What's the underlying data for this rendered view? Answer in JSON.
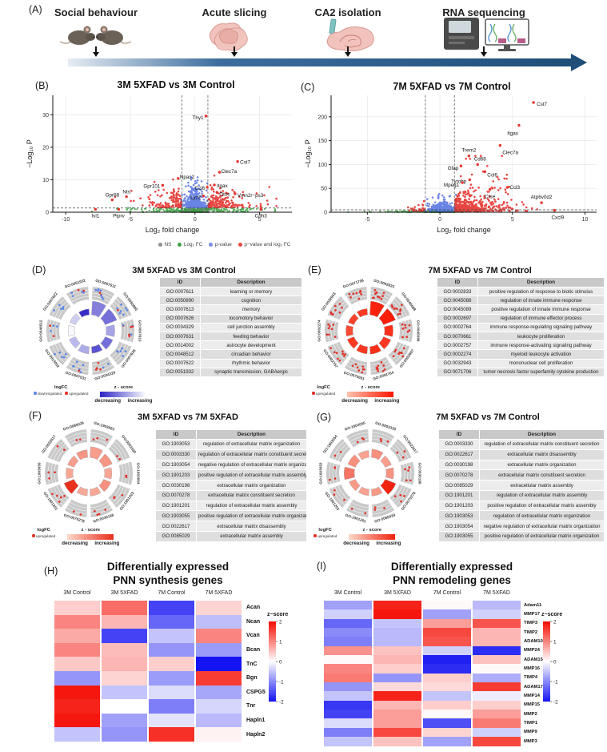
{
  "panelA": {
    "label": "(A)",
    "steps": [
      {
        "title": "Social behaviour",
        "icon": "mice-icon"
      },
      {
        "title": "Acute slicing",
        "icon": "brain-slices-icon"
      },
      {
        "title": "CA2 isolation",
        "icon": "ca2-isolation-icon"
      },
      {
        "title": "RNA sequencing",
        "icon": "rna-sequencer-icon"
      }
    ]
  },
  "volcano_legend": {
    "items": [
      {
        "label": "NS",
        "color": "#8f8f8f"
      },
      {
        "label": "Log₂ FC",
        "color": "#3fa045"
      },
      {
        "label": "p-value",
        "color": "#7b8ee8"
      },
      {
        "label": "p−value and log₂ FC",
        "color": "#e8453c"
      }
    ]
  },
  "chart_data": [
    {
      "panel": "B",
      "panel_label": "(B)",
      "type": "scatter",
      "subtype": "volcano",
      "title": "3M 5XFAD vs 3M Control",
      "xlabel": "Log₂ fold change",
      "ylabel": "−Log₁₀ P",
      "xlim": [
        -11,
        7.5
      ],
      "ylim": [
        0,
        36
      ],
      "xticks": [
        -10,
        -5,
        0,
        5
      ],
      "yticks": [
        0,
        10,
        20,
        30
      ],
      "fc_threshold": 1,
      "p_threshold": 1.3,
      "point_colors": {
        "ns": "#6f6f6f",
        "fc": "#2f9e38",
        "p": "#4f6fe0",
        "both": "#e5332e"
      },
      "labeled_genes": [
        {
          "gene": "Thy1",
          "x": 0.85,
          "y": 29.6
        },
        {
          "gene": "Cst7",
          "x": 3.3,
          "y": 15.6
        },
        {
          "gene": "Clec7a",
          "x": 1.9,
          "y": 12.3
        },
        {
          "gene": "Npas2",
          "x": -1.3,
          "y": 10.4
        },
        {
          "gene": "Gpr101",
          "x": -2.5,
          "y": 8.3
        },
        {
          "gene": "Itgax",
          "x": 1.5,
          "y": 8.4
        },
        {
          "gene": "Ccl6",
          "x": 0.95,
          "y": 7.7
        },
        {
          "gene": "Otos",
          "x": 1.7,
          "y": 6.1
        },
        {
          "gene": "Vmn2r−ps3",
          "x": 3.1,
          "y": 5.7
        },
        {
          "gene": "Lyz2",
          "x": 0.65,
          "y": 5.0
        },
        {
          "gene": "Nts",
          "x": -5.3,
          "y": 4.8
        },
        {
          "gene": "Gpr88",
          "x": -6.4,
          "y": 3.8
        },
        {
          "gene": "Isl1",
          "x": -7.7,
          "y": 0.9
        },
        {
          "gene": "Ptprv",
          "x": -5.9,
          "y": 0.9
        },
        {
          "gene": "Cdh3",
          "x": 5.1,
          "y": 0.9
        }
      ]
    },
    {
      "panel": "C",
      "panel_label": "(C)",
      "type": "scatter",
      "subtype": "volcano",
      "title": "7M 5XFAD vs 7M Control",
      "xlabel": "Log₂ fold change",
      "ylabel": "−Log₁₀ P",
      "xlim": [
        -7.5,
        10.8
      ],
      "ylim": [
        0,
        245
      ],
      "xticks": [
        -5,
        0,
        5,
        10
      ],
      "yticks": [
        0,
        50,
        100,
        150,
        200
      ],
      "fc_threshold": 1,
      "p_threshold": 5,
      "point_colors": {
        "ns": "#6f6f6f",
        "fc": "#2f9e38",
        "p": "#4f6fe0",
        "both": "#e5332e"
      },
      "labeled_genes": [
        {
          "gene": "Cst7",
          "x": 6.45,
          "y": 230
        },
        {
          "gene": "Itgax",
          "x": 5.45,
          "y": 182
        },
        {
          "gene": "Clec7a",
          "x": 4.15,
          "y": 140
        },
        {
          "gene": "Trem2",
          "x": 2.0,
          "y": 118
        },
        {
          "gene": "Cd68",
          "x": 2.6,
          "y": 100
        },
        {
          "gene": "Gfap",
          "x": 1.45,
          "y": 97
        },
        {
          "gene": "Ccl6",
          "x": 3.1,
          "y": 85
        },
        {
          "gene": "Tyrobp",
          "x": 2.05,
          "y": 68
        },
        {
          "gene": "Mpeg1",
          "x": 1.55,
          "y": 62
        },
        {
          "gene": "Ccl3",
          "x": 4.65,
          "y": 52
        },
        {
          "gene": "Ctse",
          "x": 3.45,
          "y": 48
        },
        {
          "gene": "Atp6v0d2",
          "x": 7.0,
          "y": 20
        },
        {
          "gene": "Cxcl9",
          "x": 7.9,
          "y": 4
        }
      ]
    },
    {
      "panel": "D",
      "panel_label": "(D)",
      "type": "circular-go",
      "title": "3M 5XFAD vs 3M Control",
      "legend": {
        "logfc_title": "logFC",
        "logfc_items": [
          {
            "label": "downregulated",
            "color": "#5b86e8"
          },
          {
            "label": "upregulated",
            "color": "#e03128"
          }
        ],
        "zscore_title": "z - score",
        "gradient": [
          "#2b23c4",
          "#ffffff"
        ],
        "left_label": "decreasing",
        "right_label": "increasing"
      },
      "dot_red_fraction": 0.3,
      "sectors": [
        {
          "id": "GO:0007611",
          "h": 1.0,
          "z": 0.42,
          "dots": 9
        },
        {
          "id": "GO:0050890",
          "h": 0.92,
          "z": 0.35,
          "dots": 8
        },
        {
          "id": "GO:0007613",
          "h": 0.62,
          "z": 0.58,
          "dots": 8
        },
        {
          "id": "GO:0007626",
          "h": 0.6,
          "z": 0.35,
          "dots": 7
        },
        {
          "id": "GO:0034329",
          "h": 0.48,
          "z": 0.22,
          "dots": 6
        },
        {
          "id": "GO:0007631",
          "h": 0.52,
          "z": 0.62,
          "dots": 7
        },
        {
          "id": "GO:0014002",
          "h": 0.5,
          "z": 0.68,
          "dots": 5
        },
        {
          "id": "GO:0048512",
          "h": 0.46,
          "z": 0.97,
          "dots": 5
        },
        {
          "id": "GO:0007622",
          "h": 0.46,
          "z": 0.78,
          "dots": 5
        },
        {
          "id": "GO:0051932",
          "h": 0.42,
          "z": 0.05,
          "dots": 6
        }
      ],
      "go_table": {
        "headers": [
          "ID",
          "Description"
        ],
        "rows": [
          [
            "GO:0007611",
            "learning or memory"
          ],
          [
            "GO:0050890",
            "cognition"
          ],
          [
            "GO:0007613",
            "memory"
          ],
          [
            "GO:0007626",
            "locomotory behavior"
          ],
          [
            "GO:0034329",
            "cell junction assembly"
          ],
          [
            "GO:0007631",
            "feeding behavior"
          ],
          [
            "GO:0014002",
            "astrocyte development"
          ],
          [
            "GO:0048512",
            "circadian behavior"
          ],
          [
            "GO:0007622",
            "rhythmic behavior"
          ],
          [
            "GO:0051932",
            "synaptic transmission, GABAergic"
          ]
        ]
      }
    },
    {
      "panel": "E",
      "panel_label": "(E)",
      "type": "circular-go",
      "title": "7M 5XFAD vs 7M Control",
      "legend": {
        "logfc_title": "logFC",
        "logfc_items": [
          {
            "label": "upregulated",
            "color": "#e03128"
          }
        ],
        "zscore_title": "z - score",
        "gradient": [
          "#ffc4b0",
          "#fb1500"
        ],
        "left_label": "decreasing",
        "right_label": "increasing"
      },
      "dot_red_fraction": 1,
      "sectors": [
        {
          "id": "GO:0002833",
          "h": 1.0,
          "z": 0.92,
          "dots": 11
        },
        {
          "id": "GO:0045088",
          "h": 0.95,
          "z": 0.95,
          "dots": 10
        },
        {
          "id": "GO:0045089",
          "h": 0.62,
          "z": 0.85,
          "dots": 9
        },
        {
          "id": "GO:0002697",
          "h": 0.58,
          "z": 0.8,
          "dots": 9
        },
        {
          "id": "GO:0002764",
          "h": 0.55,
          "z": 0.85,
          "dots": 10
        },
        {
          "id": "GO:0070661",
          "h": 0.52,
          "z": 0.8,
          "dots": 8
        },
        {
          "id": "GO:0002757",
          "h": 0.52,
          "z": 0.8,
          "dots": 9
        },
        {
          "id": "GO:0002274",
          "h": 0.5,
          "z": 0.7,
          "dots": 8
        },
        {
          "id": "GO:0032943",
          "h": 0.45,
          "z": 0.75,
          "dots": 8
        },
        {
          "id": "GO:0071706",
          "h": 0.45,
          "z": 0.8,
          "dots": 8
        }
      ],
      "go_table": {
        "headers": [
          "ID",
          "Description"
        ],
        "rows": [
          [
            "GO:0002833",
            "positive regulation of response to biotic stimulus"
          ],
          [
            "GO:0045088",
            "regulation of innate immune response"
          ],
          [
            "GO:0045089",
            "positive regulation of innate immune response"
          ],
          [
            "GO:0002697",
            "regulation of immune effector process"
          ],
          [
            "GO:0002764",
            "immune response-regulating signaling pathway"
          ],
          [
            "GO:0070661",
            "leukocyte proliferation"
          ],
          [
            "GO:0002757",
            "immune response-activating signaling pathway"
          ],
          [
            "GO:0002274",
            "myeloid leukocyte activation"
          ],
          [
            "GO:0032943",
            "mononuclear cell proliferation"
          ],
          [
            "GO:0071706",
            "tumor necrosis factor superfamily cytokine production"
          ]
        ]
      }
    },
    {
      "panel": "F",
      "panel_label": "(F)",
      "type": "circular-go",
      "title": "3M 5XFAD vs 7M 5XFAD",
      "legend": {
        "logfc_title": "logFC",
        "logfc_items": [
          {
            "label": "upregulated",
            "color": "#e03128"
          }
        ],
        "zscore_title": "z - score",
        "gradient": [
          "#fdd8c8",
          "#e8301c"
        ],
        "left_label": "decreasing",
        "right_label": "increasing"
      },
      "dot_red_fraction": 1,
      "sectors": [
        {
          "id": "GO:1903053",
          "h": 0.78,
          "z": 0.35,
          "dots": 3
        },
        {
          "id": "GO:0003330",
          "h": 0.68,
          "z": 0.4,
          "dots": 2
        },
        {
          "id": "GO:1903054",
          "h": 0.52,
          "z": 0.3,
          "dots": 2
        },
        {
          "id": "GO:1901203",
          "h": 0.58,
          "z": 0.42,
          "dots": 3
        },
        {
          "id": "GO:0030198",
          "h": 0.5,
          "z": 0.3,
          "dots": 4
        },
        {
          "id": "GO:0070278",
          "h": 0.48,
          "z": 0.28,
          "dots": 2
        },
        {
          "id": "GO:1901201",
          "h": 0.78,
          "z": 1.0,
          "dots": 5
        },
        {
          "id": "GO:1903055",
          "h": 0.5,
          "z": 0.3,
          "dots": 3
        },
        {
          "id": "GO:0022617",
          "h": 0.5,
          "z": 0.35,
          "dots": 2
        },
        {
          "id": "GO:0085029",
          "h": 0.55,
          "z": 0.4,
          "dots": 2
        }
      ],
      "go_table": {
        "headers": [
          "ID",
          "Description"
        ],
        "rows": [
          [
            "GO:1903053",
            "regulation of extracellular matrix organization"
          ],
          [
            "GO:0003330",
            "regulation of extracellular matrix constituent secretion"
          ],
          [
            "GO:1903054",
            "negative regulation of extracellular matrix organization"
          ],
          [
            "GO:1901203",
            "positive regulation of extracellular matrix assembly"
          ],
          [
            "GO:0030198",
            "extracellular matrix organization"
          ],
          [
            "GO:0070278",
            "extracellular matrix constituent secretion"
          ],
          [
            "GO:1901201",
            "regulation of extracellular matrix assembly"
          ],
          [
            "GO:1903055",
            "positive regulation of extracellular matrix organization"
          ],
          [
            "GO:0022617",
            "extracellular matrix disassembly"
          ],
          [
            "GO:0085029",
            "extracellular matrix assembly"
          ]
        ]
      }
    },
    {
      "panel": "G",
      "panel_label": "(G)",
      "type": "circular-go",
      "title": "7M 5XFAD vs 7M Control",
      "legend": {
        "logfc_title": "logFC",
        "logfc_items": [
          {
            "label": "upregulated",
            "color": "#e03128"
          }
        ],
        "zscore_title": "z - score",
        "gradient": [
          "#fdd8c8",
          "#ef2310"
        ],
        "left_label": "decreasing",
        "right_label": "increasing"
      },
      "dot_red_fraction": 1,
      "sectors": [
        {
          "id": "GO:0003330",
          "h": 0.6,
          "z": 0.4,
          "dots": 3
        },
        {
          "id": "GO:0022617",
          "h": 0.5,
          "z": 0.32,
          "dots": 3
        },
        {
          "id": "GO:0030198",
          "h": 0.55,
          "z": 0.38,
          "dots": 5
        },
        {
          "id": "GO:0070278",
          "h": 0.85,
          "z": 1.0,
          "dots": 4
        },
        {
          "id": "GO:0085029",
          "h": 0.5,
          "z": 0.35,
          "dots": 3
        },
        {
          "id": "GO:1901201",
          "h": 0.46,
          "z": 0.3,
          "dots": 2
        },
        {
          "id": "GO:1901203",
          "h": 0.5,
          "z": 0.35,
          "dots": 3
        },
        {
          "id": "GO:1903053",
          "h": 0.75,
          "z": 0.55,
          "dots": 4
        },
        {
          "id": "GO:1903054",
          "h": 0.6,
          "z": 0.4,
          "dots": 2
        },
        {
          "id": "GO:1903055",
          "h": 0.5,
          "z": 0.3,
          "dots": 3
        }
      ],
      "go_table": {
        "headers": [
          "ID",
          "Description"
        ],
        "rows": [
          [
            "GO:0003330",
            "regulation of extracellular matrix constituent secretion"
          ],
          [
            "GO:0022617",
            "extracellular matrix disassembly"
          ],
          [
            "GO:0030198",
            "extracellular matrix organization"
          ],
          [
            "GO:0070278",
            "extracellular matrix constituent secretion"
          ],
          [
            "GO:0085029",
            "extracellular matrix assembly"
          ],
          [
            "GO:1901201",
            "regulation of extracellular matrix assembly"
          ],
          [
            "GO:1901203",
            "positive regulation of extracellular matrix assembly"
          ],
          [
            "GO:1903053",
            "regulation of extracellular matrix organization"
          ],
          [
            "GO:1903054",
            "negative regulation of extracellular matrix organization"
          ],
          [
            "GO:1903055",
            "positive regulation of extracellular matrix organization"
          ]
        ]
      }
    },
    {
      "panel": "H",
      "panel_label": "(H)",
      "type": "heatmap",
      "title_lines": [
        "Differentially expressed",
        "PNN synthesis genes"
      ],
      "columns": [
        "3M Control",
        "3M 5XFAD",
        "7M Control",
        "7M 5XFAD"
      ],
      "rows": [
        "Acan",
        "Ncan",
        "Vcan",
        "Bcan",
        "TnC",
        "Bgn",
        "CSPG5",
        "Tnr",
        "Hapln1",
        "Hapln2"
      ],
      "values": [
        [
          0.4,
          1.2,
          -1.6,
          0.35
        ],
        [
          1.0,
          0.6,
          -1.3,
          -0.55
        ],
        [
          0.7,
          -1.6,
          -0.5,
          1.0
        ],
        [
          1.0,
          0.55,
          -0.9,
          -0.85
        ],
        [
          0.45,
          0.6,
          0.4,
          -2.0
        ],
        [
          -0.9,
          0.35,
          -0.85,
          1.6
        ],
        [
          1.9,
          -0.5,
          -0.3,
          -0.75
        ],
        [
          1.8,
          0.0,
          -1.1,
          -0.35
        ],
        [
          1.9,
          -0.8,
          -0.25,
          -0.6
        ],
        [
          -0.5,
          -0.9,
          1.7,
          0.1
        ]
      ],
      "colorbar": {
        "title": "z−score",
        "ticks": [
          2,
          1,
          0,
          -1,
          -2
        ],
        "range": [
          -2,
          2
        ],
        "colors": [
          "#f40b00",
          "#ffffff",
          "#1414f2"
        ]
      }
    },
    {
      "panel": "I",
      "panel_label": "(I)",
      "type": "heatmap",
      "title_lines": [
        "Differentially expressed",
        "PNN remodeling genes"
      ],
      "columns": [
        "3M Control",
        "3M 5XFAD",
        "7M Control",
        "7M 5XFAD"
      ],
      "rows": [
        "Adam11",
        "MMP17",
        "TIMP3",
        "TIMP2",
        "ADAM10",
        "MMP24",
        "ADAM15",
        "MMP16",
        "TIMP4",
        "ADAM17",
        "MMP14",
        "MMP15",
        "MMP2",
        "TIMP1",
        "MMP9",
        "MMP3"
      ],
      "values": [
        [
          -0.8,
          1.8,
          0.05,
          -0.6
        ],
        [
          -0.4,
          1.9,
          -0.8,
          -0.4
        ],
        [
          -1.3,
          -0.5,
          0.8,
          1.4
        ],
        [
          -1.0,
          -0.6,
          1.5,
          0.6
        ],
        [
          -1.1,
          -0.6,
          1.4,
          0.6
        ],
        [
          0.9,
          0.5,
          -0.4,
          -1.8
        ],
        [
          0.05,
          0.6,
          -1.9,
          0.5
        ],
        [
          1.0,
          0.4,
          -1.8,
          0.05
        ],
        [
          1.1,
          -0.9,
          0.4,
          -0.7
        ],
        [
          -0.9,
          0.3,
          0.3,
          1.6
        ],
        [
          -0.5,
          1.8,
          -0.5,
          -0.15
        ],
        [
          -1.7,
          0.6,
          0.4,
          0.4
        ],
        [
          -1.6,
          0.8,
          0.05,
          0.8
        ],
        [
          -0.3,
          0.8,
          -1.5,
          1.1
        ],
        [
          -1.1,
          1.5,
          0.35,
          -0.4
        ],
        [
          -0.5,
          0.5,
          -0.8,
          1.5
        ]
      ],
      "colorbar": {
        "title": "z−score",
        "ticks": [
          2,
          1,
          0,
          -1,
          -2
        ],
        "range": [
          -2,
          2
        ],
        "colors": [
          "#f40b00",
          "#ffffff",
          "#1414f2"
        ]
      }
    }
  ]
}
